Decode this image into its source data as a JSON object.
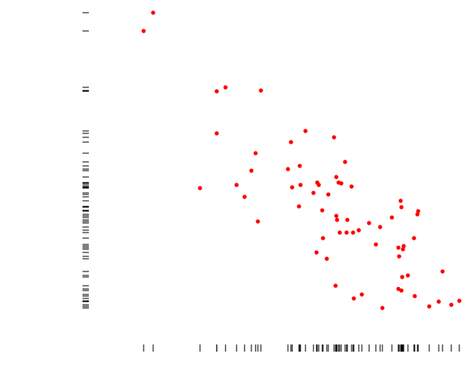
{
  "chart_data": {
    "type": "scatter",
    "color": "#ff0000",
    "rug": true,
    "rug_color": "#000000",
    "xlim": [
      0,
      100
    ],
    "ylim": [
      0,
      100
    ],
    "x": [
      17.3,
      14.8,
      34.0,
      36.3,
      45.6,
      34.0,
      29.6,
      39.2,
      41.3,
      43.1,
      44.2,
      44.8,
      53.5,
      57.3,
      52.7,
      53.8,
      55.8,
      56.0,
      55.6,
      59.4,
      60.4,
      60.8,
      63.3,
      61.7,
      61.9,
      60.2,
      62.9,
      64.8,
      67.7,
      65.4,
      66.0,
      66.7,
      69.4,
      65.2,
      65.4,
      65.6,
      68.3,
      66.3,
      68.1,
      69.8,
      71.3,
      70.0,
      72.1,
      74.0,
      75.8,
      76.9,
      77.5,
      80.0,
      82.3,
      82.5,
      86.9,
      86.7,
      81.7,
      83.1,
      82.9,
      81.9,
      85.8,
      82.7,
      84.2,
      81.7,
      82.5,
      86.0,
      89.8,
      92.3,
      93.3,
      95.6,
      97.7
    ],
    "values": [
      98.5,
      92.75,
      73.75,
      75,
      74,
      60.5,
      43.25,
      44.25,
      40.5,
      48.75,
      54.25,
      32.75,
      57.75,
      61.25,
      49.25,
      43.5,
      50.25,
      44.25,
      37.5,
      41.75,
      45,
      44.25,
      41.25,
      36.25,
      27.5,
      23,
      21,
      59.25,
      51.5,
      46.75,
      45,
      44.75,
      43.75,
      12.5,
      34.5,
      33.25,
      33.25,
      29.25,
      29.25,
      29.25,
      30,
      8.5,
      9.75,
      32.25,
      25.5,
      31,
      5.5,
      34,
      39.25,
      37.25,
      36,
      35,
      24.5,
      25,
      24,
      21.75,
      27.5,
      15.25,
      15.75,
      11.5,
      11,
      9.25,
      6,
      7.5,
      17,
      6.5,
      7.75
    ]
  }
}
